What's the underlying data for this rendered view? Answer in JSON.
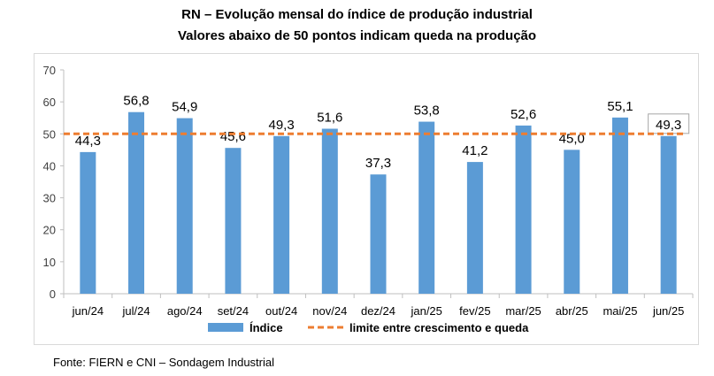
{
  "header": {
    "title": "RN – Evolução mensal do índice de produção industrial",
    "subtitle": "Valores abaixo de 50 pontos indicam queda na produção"
  },
  "footer": {
    "source": "Fonte: FIERN e CNI – Sondagem Industrial"
  },
  "chart_data": {
    "type": "bar",
    "categories": [
      "jun/24",
      "jul/24",
      "ago/24",
      "set/24",
      "out/24",
      "nov/24",
      "dez/24",
      "jan/25",
      "fev/25",
      "mar/25",
      "abr/25",
      "mai/25",
      "jun/25"
    ],
    "series": [
      {
        "name": "Índice",
        "values": [
          44.3,
          56.8,
          54.9,
          45.6,
          49.3,
          51.6,
          37.3,
          53.8,
          41.2,
          52.6,
          45.0,
          55.1,
          49.3
        ],
        "color": "#5b9bd5"
      }
    ],
    "data_labels": [
      "44,3",
      "56,8",
      "54,9",
      "45,6",
      "49,3",
      "51,6",
      "37,3",
      "53,8",
      "41,2",
      "52,6",
      "45,0",
      "55,1",
      "49,3"
    ],
    "reference_line": {
      "name": "limite entre crescimento e queda",
      "value": 50,
      "color": "#ed7d31",
      "style": "dashed"
    },
    "ylim": [
      0,
      70
    ],
    "yticks": [
      0,
      10,
      20,
      30,
      40,
      50,
      60,
      70
    ],
    "ytick_labels": [
      "0",
      "10",
      "20",
      "30",
      "40",
      "50",
      "60",
      "70"
    ],
    "grid": false,
    "legend": "bottom",
    "highlighted_label_index": 12
  }
}
